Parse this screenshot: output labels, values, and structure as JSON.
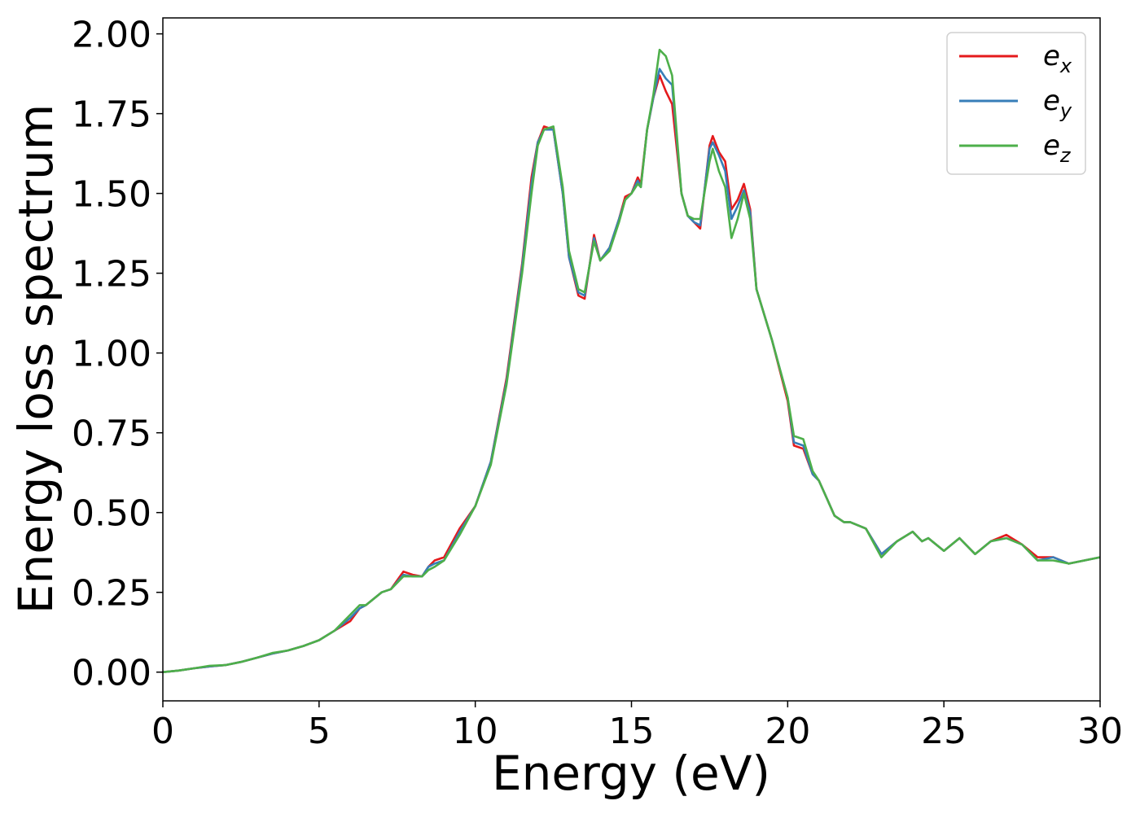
{
  "chart_data": {
    "type": "line",
    "title": "",
    "xlabel": "Energy (eV)",
    "ylabel": "Energy loss spectrum",
    "xlim": [
      0,
      30
    ],
    "ylim": [
      -0.09,
      2.05
    ],
    "xticks": [
      0,
      5,
      10,
      15,
      20,
      25,
      30
    ],
    "xtick_labels": [
      "0",
      "5",
      "10",
      "15",
      "20",
      "25",
      "30"
    ],
    "yticks": [
      0,
      0.25,
      0.5,
      0.75,
      1.0,
      1.25,
      1.5,
      1.75,
      2.0
    ],
    "ytick_labels": [
      "0.00",
      "0.25",
      "0.50",
      "0.75",
      "1.00",
      "1.25",
      "1.50",
      "1.75",
      "2.00"
    ],
    "grid": false,
    "legend": "top-right",
    "series": [
      {
        "name": "e_x",
        "base": "e",
        "sub": "x",
        "color": "#e41a1c",
        "points": [
          [
            0,
            0
          ],
          [
            0.5,
            0.005
          ],
          [
            1.0,
            0.012
          ],
          [
            1.5,
            0.018
          ],
          [
            2.0,
            0.022
          ],
          [
            2.5,
            0.032
          ],
          [
            3.0,
            0.045
          ],
          [
            3.5,
            0.058
          ],
          [
            4.0,
            0.068
          ],
          [
            4.5,
            0.082
          ],
          [
            5.0,
            0.1
          ],
          [
            5.5,
            0.13
          ],
          [
            6.0,
            0.16
          ],
          [
            6.3,
            0.2
          ],
          [
            6.5,
            0.21
          ],
          [
            7.0,
            0.25
          ],
          [
            7.3,
            0.26
          ],
          [
            7.7,
            0.315
          ],
          [
            8.0,
            0.305
          ],
          [
            8.3,
            0.3
          ],
          [
            8.5,
            0.33
          ],
          [
            8.7,
            0.35
          ],
          [
            9.0,
            0.36
          ],
          [
            9.5,
            0.45
          ],
          [
            10.0,
            0.52
          ],
          [
            10.5,
            0.66
          ],
          [
            11.0,
            0.92
          ],
          [
            11.5,
            1.28
          ],
          [
            11.8,
            1.55
          ],
          [
            12.0,
            1.66
          ],
          [
            12.2,
            1.71
          ],
          [
            12.5,
            1.7
          ],
          [
            12.8,
            1.5
          ],
          [
            13.0,
            1.3
          ],
          [
            13.3,
            1.18
          ],
          [
            13.5,
            1.17
          ],
          [
            13.8,
            1.37
          ],
          [
            14.0,
            1.29
          ],
          [
            14.3,
            1.33
          ],
          [
            14.6,
            1.42
          ],
          [
            14.8,
            1.49
          ],
          [
            15.0,
            1.5
          ],
          [
            15.2,
            1.55
          ],
          [
            15.3,
            1.53
          ],
          [
            15.5,
            1.7
          ],
          [
            15.7,
            1.8
          ],
          [
            15.9,
            1.87
          ],
          [
            16.1,
            1.82
          ],
          [
            16.3,
            1.78
          ],
          [
            16.6,
            1.5
          ],
          [
            16.8,
            1.43
          ],
          [
            17.0,
            1.41
          ],
          [
            17.2,
            1.39
          ],
          [
            17.5,
            1.65
          ],
          [
            17.6,
            1.68
          ],
          [
            17.8,
            1.63
          ],
          [
            18.0,
            1.6
          ],
          [
            18.2,
            1.45
          ],
          [
            18.4,
            1.48
          ],
          [
            18.6,
            1.53
          ],
          [
            18.8,
            1.45
          ],
          [
            19.0,
            1.2
          ],
          [
            19.5,
            1.04
          ],
          [
            20.0,
            0.85
          ],
          [
            20.2,
            0.71
          ],
          [
            20.5,
            0.7
          ],
          [
            20.8,
            0.62
          ],
          [
            21.0,
            0.6
          ],
          [
            21.5,
            0.49
          ],
          [
            21.8,
            0.47
          ],
          [
            22.0,
            0.47
          ],
          [
            22.5,
            0.45
          ],
          [
            23.0,
            0.37
          ],
          [
            23.5,
            0.41
          ],
          [
            24.0,
            0.44
          ],
          [
            24.3,
            0.41
          ],
          [
            24.5,
            0.42
          ],
          [
            25.0,
            0.38
          ],
          [
            25.5,
            0.42
          ],
          [
            26.0,
            0.37
          ],
          [
            26.5,
            0.41
          ],
          [
            27.0,
            0.43
          ],
          [
            27.5,
            0.4
          ],
          [
            28.0,
            0.36
          ],
          [
            28.5,
            0.36
          ],
          [
            29.0,
            0.34
          ],
          [
            29.5,
            0.35
          ],
          [
            30.0,
            0.36
          ]
        ]
      },
      {
        "name": "e_y",
        "base": "e",
        "sub": "y",
        "color": "#377eb8",
        "points": [
          [
            0,
            0
          ],
          [
            0.5,
            0.005
          ],
          [
            1.0,
            0.012
          ],
          [
            1.5,
            0.018
          ],
          [
            2.0,
            0.022
          ],
          [
            2.5,
            0.032
          ],
          [
            3.0,
            0.045
          ],
          [
            3.5,
            0.058
          ],
          [
            4.0,
            0.068
          ],
          [
            4.5,
            0.082
          ],
          [
            5.0,
            0.1
          ],
          [
            5.5,
            0.13
          ],
          [
            6.0,
            0.17
          ],
          [
            6.3,
            0.2
          ],
          [
            6.5,
            0.21
          ],
          [
            7.0,
            0.25
          ],
          [
            7.3,
            0.26
          ],
          [
            7.7,
            0.305
          ],
          [
            8.0,
            0.3
          ],
          [
            8.3,
            0.3
          ],
          [
            8.5,
            0.33
          ],
          [
            8.7,
            0.34
          ],
          [
            9.0,
            0.35
          ],
          [
            9.5,
            0.44
          ],
          [
            10.0,
            0.52
          ],
          [
            10.5,
            0.66
          ],
          [
            11.0,
            0.91
          ],
          [
            11.5,
            1.27
          ],
          [
            11.8,
            1.53
          ],
          [
            12.0,
            1.66
          ],
          [
            12.2,
            1.7
          ],
          [
            12.5,
            1.7
          ],
          [
            12.8,
            1.5
          ],
          [
            13.0,
            1.3
          ],
          [
            13.3,
            1.19
          ],
          [
            13.5,
            1.18
          ],
          [
            13.8,
            1.36
          ],
          [
            14.0,
            1.29
          ],
          [
            14.3,
            1.33
          ],
          [
            14.6,
            1.42
          ],
          [
            14.8,
            1.48
          ],
          [
            15.0,
            1.5
          ],
          [
            15.2,
            1.54
          ],
          [
            15.3,
            1.52
          ],
          [
            15.5,
            1.7
          ],
          [
            15.7,
            1.8
          ],
          [
            15.9,
            1.89
          ],
          [
            16.1,
            1.86
          ],
          [
            16.3,
            1.84
          ],
          [
            16.6,
            1.5
          ],
          [
            16.8,
            1.43
          ],
          [
            17.0,
            1.41
          ],
          [
            17.2,
            1.4
          ],
          [
            17.5,
            1.64
          ],
          [
            17.6,
            1.66
          ],
          [
            17.8,
            1.62
          ],
          [
            18.0,
            1.57
          ],
          [
            18.2,
            1.42
          ],
          [
            18.4,
            1.46
          ],
          [
            18.6,
            1.51
          ],
          [
            18.8,
            1.44
          ],
          [
            19.0,
            1.2
          ],
          [
            19.5,
            1.04
          ],
          [
            20.0,
            0.86
          ],
          [
            20.2,
            0.72
          ],
          [
            20.5,
            0.71
          ],
          [
            20.8,
            0.62
          ],
          [
            21.0,
            0.6
          ],
          [
            21.5,
            0.49
          ],
          [
            21.8,
            0.47
          ],
          [
            22.0,
            0.47
          ],
          [
            22.5,
            0.45
          ],
          [
            23.0,
            0.37
          ],
          [
            23.5,
            0.41
          ],
          [
            24.0,
            0.44
          ],
          [
            24.3,
            0.41
          ],
          [
            24.5,
            0.42
          ],
          [
            25.0,
            0.38
          ],
          [
            25.5,
            0.42
          ],
          [
            26.0,
            0.37
          ],
          [
            26.5,
            0.41
          ],
          [
            27.0,
            0.42
          ],
          [
            27.5,
            0.4
          ],
          [
            28.0,
            0.35
          ],
          [
            28.5,
            0.36
          ],
          [
            29.0,
            0.34
          ],
          [
            29.5,
            0.35
          ],
          [
            30.0,
            0.36
          ]
        ]
      },
      {
        "name": "e_z",
        "base": "e",
        "sub": "z",
        "color": "#4daf4a",
        "points": [
          [
            0,
            0
          ],
          [
            0.5,
            0.005
          ],
          [
            1.0,
            0.012
          ],
          [
            1.5,
            0.02
          ],
          [
            2.0,
            0.022
          ],
          [
            2.5,
            0.032
          ],
          [
            3.0,
            0.045
          ],
          [
            3.5,
            0.06
          ],
          [
            4.0,
            0.068
          ],
          [
            4.5,
            0.082
          ],
          [
            5.0,
            0.1
          ],
          [
            5.5,
            0.13
          ],
          [
            6.0,
            0.18
          ],
          [
            6.3,
            0.21
          ],
          [
            6.5,
            0.21
          ],
          [
            7.0,
            0.25
          ],
          [
            7.3,
            0.26
          ],
          [
            7.7,
            0.3
          ],
          [
            8.0,
            0.3
          ],
          [
            8.3,
            0.3
          ],
          [
            8.5,
            0.32
          ],
          [
            8.7,
            0.33
          ],
          [
            9.0,
            0.35
          ],
          [
            9.5,
            0.43
          ],
          [
            10.0,
            0.52
          ],
          [
            10.5,
            0.65
          ],
          [
            11.0,
            0.9
          ],
          [
            11.5,
            1.25
          ],
          [
            11.8,
            1.5
          ],
          [
            12.0,
            1.65
          ],
          [
            12.2,
            1.7
          ],
          [
            12.5,
            1.71
          ],
          [
            12.8,
            1.52
          ],
          [
            13.0,
            1.32
          ],
          [
            13.3,
            1.2
          ],
          [
            13.5,
            1.19
          ],
          [
            13.8,
            1.35
          ],
          [
            14.0,
            1.29
          ],
          [
            14.3,
            1.32
          ],
          [
            14.6,
            1.41
          ],
          [
            14.8,
            1.48
          ],
          [
            15.0,
            1.5
          ],
          [
            15.2,
            1.53
          ],
          [
            15.3,
            1.52
          ],
          [
            15.5,
            1.7
          ],
          [
            15.7,
            1.81
          ],
          [
            15.9,
            1.95
          ],
          [
            16.1,
            1.93
          ],
          [
            16.3,
            1.87
          ],
          [
            16.6,
            1.5
          ],
          [
            16.8,
            1.43
          ],
          [
            17.0,
            1.42
          ],
          [
            17.2,
            1.42
          ],
          [
            17.5,
            1.6
          ],
          [
            17.6,
            1.64
          ],
          [
            17.8,
            1.57
          ],
          [
            18.0,
            1.52
          ],
          [
            18.2,
            1.36
          ],
          [
            18.4,
            1.42
          ],
          [
            18.6,
            1.5
          ],
          [
            18.8,
            1.42
          ],
          [
            19.0,
            1.2
          ],
          [
            19.5,
            1.04
          ],
          [
            20.0,
            0.86
          ],
          [
            20.2,
            0.74
          ],
          [
            20.5,
            0.73
          ],
          [
            20.8,
            0.63
          ],
          [
            21.0,
            0.6
          ],
          [
            21.5,
            0.49
          ],
          [
            21.8,
            0.47
          ],
          [
            22.0,
            0.47
          ],
          [
            22.5,
            0.45
          ],
          [
            23.0,
            0.36
          ],
          [
            23.5,
            0.41
          ],
          [
            24.0,
            0.44
          ],
          [
            24.3,
            0.41
          ],
          [
            24.5,
            0.42
          ],
          [
            25.0,
            0.38
          ],
          [
            25.5,
            0.42
          ],
          [
            26.0,
            0.37
          ],
          [
            26.5,
            0.41
          ],
          [
            27.0,
            0.42
          ],
          [
            27.5,
            0.4
          ],
          [
            28.0,
            0.35
          ],
          [
            28.5,
            0.35
          ],
          [
            29.0,
            0.34
          ],
          [
            29.5,
            0.35
          ],
          [
            30.0,
            0.36
          ]
        ]
      }
    ]
  }
}
